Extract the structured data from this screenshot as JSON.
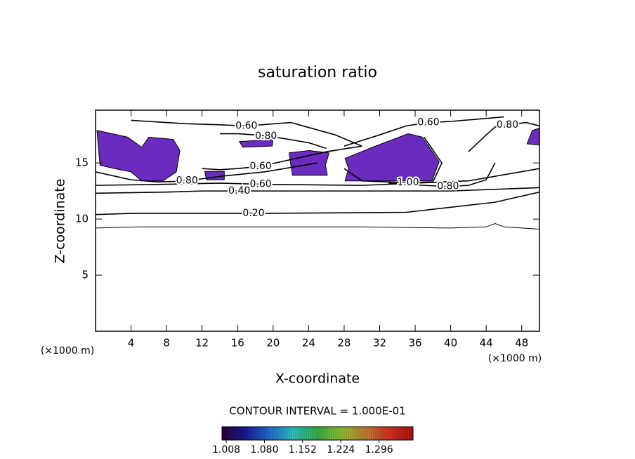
{
  "chart_data": {
    "type": "contour",
    "title": "saturation ratio",
    "x_label": "X-coordinate",
    "y_label": "Z-coordinate",
    "x_unit": "(×1000 m)",
    "y_unit": "(×1000 m)",
    "xlim": [
      0,
      50
    ],
    "ylim": [
      0,
      19.7
    ],
    "xticks": [
      4,
      8,
      12,
      16,
      20,
      24,
      28,
      32,
      36,
      40,
      44,
      48
    ],
    "yticks": [
      5,
      10,
      15
    ],
    "line_color": "#000000",
    "fill_color": "#6b2bbf",
    "contours": [
      {
        "x": [
          0,
          5,
          10,
          20,
          30,
          40,
          44,
          45,
          46,
          50
        ],
        "y": [
          9.2,
          9.3,
          9.3,
          9.3,
          9.3,
          9.2,
          9.3,
          9.6,
          9.3,
          9.1
        ]
      },
      {
        "label": "0.20",
        "x": [
          0,
          4,
          10,
          17.8,
          35,
          45,
          50
        ],
        "y": [
          10.4,
          10.5,
          10.5,
          10.5,
          10.6,
          11.5,
          12.4
        ]
      },
      {
        "label": "0.40",
        "x": [
          0,
          8,
          12,
          16.2,
          28,
          40,
          50
        ],
        "y": [
          12.3,
          12.4,
          12.5,
          12.5,
          12.5,
          12.5,
          12.8
        ]
      },
      {
        "label": "0.60",
        "x": [
          0,
          8,
          14,
          18.6,
          30,
          42,
          50
        ],
        "y": [
          13.0,
          13.1,
          13.2,
          13.1,
          13.0,
          13.4,
          14.5
        ]
      },
      {
        "label": "0.80",
        "x": [
          0,
          4,
          7,
          10.3,
          14,
          19,
          25
        ],
        "y": [
          14.2,
          13.5,
          13.3,
          13.4,
          13.8,
          14.2,
          15.0
        ]
      },
      {
        "label": "1.00",
        "x": [
          28,
          30,
          33,
          35.2,
          38,
          39,
          37
        ],
        "y": [
          14.5,
          13.4,
          13.3,
          13.25,
          13.3,
          15.0,
          17.3
        ]
      },
      {
        "label": "0.60",
        "x": [
          4,
          10,
          14,
          17,
          22,
          27,
          30
        ],
        "y": [
          18.8,
          18.5,
          18.4,
          18.3,
          18.6,
          17.5,
          16.5
        ]
      },
      {
        "label": "0.80",
        "x": [
          14,
          16,
          18,
          19.2,
          21,
          24,
          26
        ],
        "y": [
          17.6,
          17.6,
          17.5,
          17.4,
          17.2,
          16.8,
          16.3
        ]
      },
      {
        "label": "0.60",
        "x": [
          28,
          32,
          35,
          37.5,
          40,
          43,
          46
        ],
        "y": [
          16.5,
          17.5,
          18.3,
          18.6,
          18.7,
          18.9,
          19.1
        ]
      },
      {
        "label": "0.80",
        "x": [
          42,
          44,
          45,
          46.4,
          47.5,
          48.5,
          50
        ],
        "y": [
          16.0,
          17.5,
          18.2,
          18.4,
          18.5,
          18.6,
          18.3
        ]
      },
      {
        "label": "0.80",
        "x": [
          33,
          35,
          37,
          39.7,
          42,
          44,
          45
        ],
        "y": [
          13.2,
          13.1,
          13.0,
          12.9,
          13.0,
          13.5,
          15.0
        ]
      },
      {
        "label": "0.60",
        "x": [
          12,
          14,
          16,
          18.6,
          22,
          26,
          30
        ],
        "y": [
          14.5,
          14.4,
          14.5,
          14.7,
          15.3,
          16.0,
          16.5
        ]
      }
    ],
    "filled_regions": [
      {
        "x": [
          0.16,
          3.6,
          5.2,
          6.0,
          8.75,
          9.5,
          9.1,
          7.6,
          5.2,
          4.0,
          2.1,
          0.5
        ],
        "y": [
          17.9,
          17.3,
          16.4,
          17.3,
          17.1,
          16.1,
          14.2,
          13.4,
          13.4,
          14.2,
          14.5,
          14.8
        ]
      },
      {
        "x": [
          12.3,
          14.5,
          14.5,
          12.5
        ],
        "y": [
          14.25,
          14.25,
          13.5,
          13.5
        ]
      },
      {
        "x": [
          16.2,
          20,
          19.9,
          16.6
        ],
        "y": [
          16.9,
          17.1,
          16.5,
          16.4
        ]
      },
      {
        "x": [
          21.8,
          24.1,
          26.3,
          25.9,
          26.1,
          22.2,
          22
        ],
        "y": [
          15.9,
          16.1,
          15.9,
          14.8,
          13.9,
          13.9,
          14.8
        ]
      },
      {
        "x": [
          28.1,
          31.2,
          35.2,
          36.8,
          38.7,
          37.9,
          28.1,
          28.5
        ],
        "y": [
          15.4,
          16.4,
          17.6,
          17.3,
          15.1,
          13.4,
          13.4,
          14.5
        ]
      },
      {
        "x": [
          49.2,
          50,
          50,
          48.6
        ],
        "y": [
          17.9,
          18.1,
          16.6,
          16.7
        ]
      }
    ],
    "contour_interval": "CONTOUR INTERVAL = 1.000E-01",
    "colorbar": {
      "lim": [
        1.0,
        1.36
      ],
      "colors": [
        "#2a0033",
        "#1a1a9a",
        "#1f6fd0",
        "#2fc0c0",
        "#30b040",
        "#90c030",
        "#c08030",
        "#d03020",
        "#b01010"
      ],
      "ticks": [
        1.008,
        {
          "value": 1.08,
          "label": "1.080"
        },
        1.152,
        1.224,
        1.296
      ]
    }
  }
}
